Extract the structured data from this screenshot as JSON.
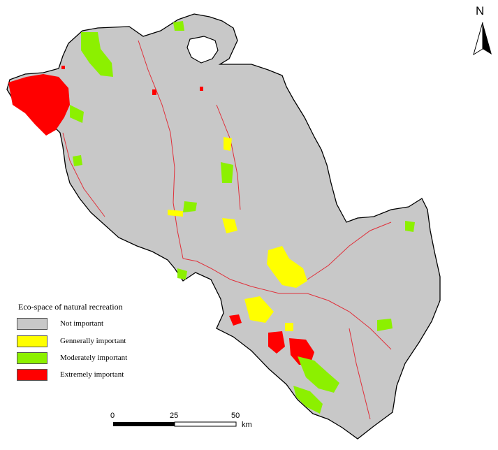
{
  "legend": {
    "title": "Eco-space of natural recreation",
    "items": [
      {
        "label": "Not important",
        "color": "#c8c8c8"
      },
      {
        "label": "Gennerally important",
        "color": "#ffff00"
      },
      {
        "label": "Moderately important",
        "color": "#8cf000"
      },
      {
        "label": "Extremely important",
        "color": "#ff0000"
      }
    ]
  },
  "north_arrow": {
    "label": "N"
  },
  "scale_bar": {
    "ticks": [
      "0",
      "25",
      "50"
    ],
    "unit": "km"
  },
  "colors": {
    "region_fill": "#c8c8c8",
    "outline": "#000000",
    "route": "#e0303a"
  }
}
